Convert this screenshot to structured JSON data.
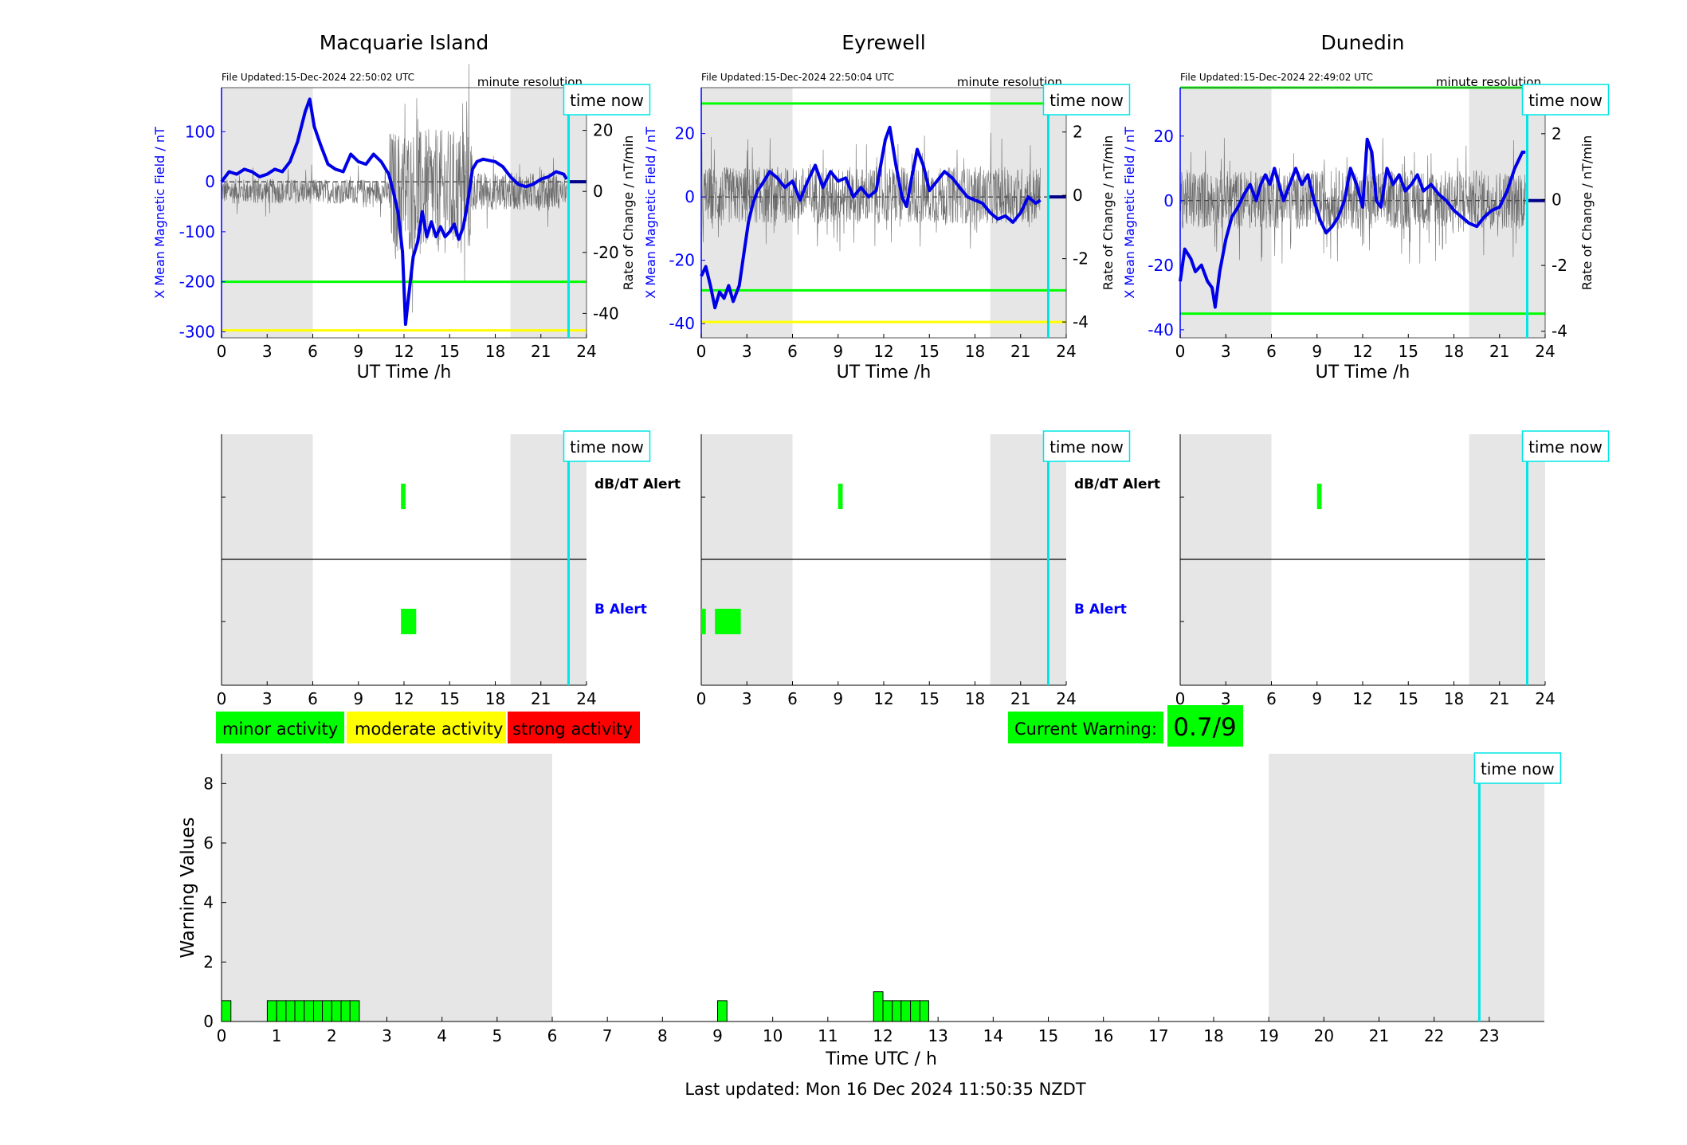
{
  "time_now_label": "time now",
  "time_now_hour": 22.82,
  "station_xlabel": "UT Time /h",
  "station_ylabel_left": "X Mean Magnetic Field / nT",
  "station_ylabel_right": "Rate of Change / nT/min",
  "minute_resolution_label": "minute resolution",
  "stations": [
    {
      "name": "Macquarie Island",
      "file_updated": "File Updated:15-Dec-2024 22:50:02 UTC",
      "ylim_left": [
        -312,
        188
      ],
      "yticks_left": [
        100,
        0,
        -100,
        -200,
        -300
      ],
      "ylim_right": [
        -48,
        34
      ],
      "yticks_right": [
        20,
        0,
        -20,
        -40
      ],
      "green_line": -200,
      "yellow_line": -297,
      "field_points": [
        [
          0,
          0
        ],
        [
          0.5,
          20
        ],
        [
          1,
          15
        ],
        [
          1.5,
          25
        ],
        [
          2,
          20
        ],
        [
          2.5,
          10
        ],
        [
          3,
          15
        ],
        [
          3.5,
          25
        ],
        [
          4,
          20
        ],
        [
          4.5,
          40
        ],
        [
          5,
          80
        ],
        [
          5.5,
          140
        ],
        [
          5.8,
          165
        ],
        [
          6.1,
          110
        ],
        [
          6.5,
          75
        ],
        [
          7,
          35
        ],
        [
          7.5,
          25
        ],
        [
          8,
          20
        ],
        [
          8.5,
          55
        ],
        [
          9,
          40
        ],
        [
          9.5,
          35
        ],
        [
          10,
          55
        ],
        [
          10.5,
          40
        ],
        [
          11,
          15
        ],
        [
          11.3,
          -20
        ],
        [
          11.6,
          -60
        ],
        [
          11.9,
          -140
        ],
        [
          12.1,
          -285
        ],
        [
          12.3,
          -230
        ],
        [
          12.6,
          -150
        ],
        [
          12.9,
          -120
        ],
        [
          13.2,
          -60
        ],
        [
          13.5,
          -110
        ],
        [
          13.8,
          -80
        ],
        [
          14.1,
          -110
        ],
        [
          14.4,
          -90
        ],
        [
          14.7,
          -110
        ],
        [
          15,
          -100
        ],
        [
          15.3,
          -85
        ],
        [
          15.6,
          -115
        ],
        [
          15.9,
          -90
        ],
        [
          16.2,
          -40
        ],
        [
          16.5,
          25
        ],
        [
          16.8,
          40
        ],
        [
          17.2,
          45
        ],
        [
          18,
          40
        ],
        [
          18.5,
          30
        ],
        [
          19,
          10
        ],
        [
          19.5,
          -5
        ],
        [
          20,
          -10
        ],
        [
          20.5,
          -5
        ],
        [
          21,
          5
        ],
        [
          21.5,
          10
        ],
        [
          22,
          20
        ],
        [
          22.5,
          15
        ],
        [
          22.7,
          5
        ]
      ],
      "db_alerts": [
        [
          11.8,
          12.1,
          "minor"
        ]
      ],
      "b_alerts": [
        [
          11.8,
          12.8,
          "minor"
        ]
      ],
      "show_alert_labels": true
    },
    {
      "name": "Eyrewell",
      "file_updated": "File Updated:15-Dec-2024 22:50:04 UTC",
      "ylim_left": [
        -44.5,
        34.5
      ],
      "yticks_left": [
        20,
        0,
        -20,
        -40
      ],
      "ylim_right": [
        -4.5,
        3.4
      ],
      "yticks_right": [
        2,
        0,
        -2,
        -4
      ],
      "green_lines": [
        29.5,
        -29.5
      ],
      "yellow_line": -39.5,
      "field_points": [
        [
          0,
          -25
        ],
        [
          0.3,
          -22
        ],
        [
          0.6,
          -28
        ],
        [
          0.9,
          -35
        ],
        [
          1.2,
          -30
        ],
        [
          1.5,
          -32
        ],
        [
          1.8,
          -28
        ],
        [
          2.1,
          -33
        ],
        [
          2.5,
          -28
        ],
        [
          2.8,
          -18
        ],
        [
          3.1,
          -8
        ],
        [
          3.4,
          -2
        ],
        [
          3.7,
          2
        ],
        [
          4,
          4
        ],
        [
          4.5,
          8
        ],
        [
          5,
          6
        ],
        [
          5.5,
          3
        ],
        [
          6,
          5
        ],
        [
          6.5,
          -1
        ],
        [
          7,
          5
        ],
        [
          7.5,
          10
        ],
        [
          8,
          3
        ],
        [
          8.5,
          8
        ],
        [
          9,
          5
        ],
        [
          9.5,
          6
        ],
        [
          10,
          0
        ],
        [
          10.5,
          3
        ],
        [
          11,
          0
        ],
        [
          11.5,
          2
        ],
        [
          11.8,
          10
        ],
        [
          12.1,
          18
        ],
        [
          12.4,
          22
        ],
        [
          12.8,
          10
        ],
        [
          13.2,
          0
        ],
        [
          13.5,
          -3
        ],
        [
          13.8,
          5
        ],
        [
          14.2,
          15
        ],
        [
          14.6,
          10
        ],
        [
          15,
          2
        ],
        [
          15.5,
          5
        ],
        [
          16,
          8
        ],
        [
          16.5,
          6
        ],
        [
          17,
          3
        ],
        [
          17.5,
          0
        ],
        [
          18,
          -1
        ],
        [
          18.5,
          -2
        ],
        [
          19,
          -5
        ],
        [
          19.5,
          -7
        ],
        [
          20,
          -6
        ],
        [
          20.5,
          -8
        ],
        [
          21,
          -5
        ],
        [
          21.5,
          0
        ],
        [
          22,
          -2
        ],
        [
          22.3,
          -1
        ]
      ],
      "db_alerts": [
        [
          9.0,
          9.3,
          "minor"
        ]
      ],
      "b_alerts": [
        [
          0,
          0.3,
          "minor"
        ],
        [
          0.9,
          2.6,
          "minor"
        ]
      ],
      "show_alert_labels": true
    },
    {
      "name": "Dunedin",
      "file_updated": "File Updated:15-Dec-2024 22:49:02 UTC",
      "ylim_left": [
        -42.5,
        35
      ],
      "yticks_left": [
        20,
        0,
        -20,
        -40
      ],
      "ylim_right": [
        -4.2,
        3.4
      ],
      "yticks_right": [
        2,
        0,
        -2,
        -4
      ],
      "green_lines": [
        35,
        -35
      ],
      "field_points": [
        [
          0,
          -25
        ],
        [
          0.3,
          -15
        ],
        [
          0.7,
          -18
        ],
        [
          1,
          -22
        ],
        [
          1.4,
          -20
        ],
        [
          1.8,
          -25
        ],
        [
          2.1,
          -27
        ],
        [
          2.3,
          -33
        ],
        [
          2.6,
          -22
        ],
        [
          3,
          -12
        ],
        [
          3.4,
          -5
        ],
        [
          3.8,
          -2
        ],
        [
          4.2,
          2
        ],
        [
          4.6,
          5
        ],
        [
          5,
          0
        ],
        [
          5.3,
          5
        ],
        [
          5.6,
          8
        ],
        [
          5.9,
          5
        ],
        [
          6.2,
          10
        ],
        [
          6.5,
          5
        ],
        [
          6.8,
          0
        ],
        [
          7.2,
          5
        ],
        [
          7.6,
          10
        ],
        [
          8,
          5
        ],
        [
          8.4,
          8
        ],
        [
          8.8,
          0
        ],
        [
          9.2,
          -6
        ],
        [
          9.6,
          -10
        ],
        [
          10,
          -8
        ],
        [
          10.4,
          -5
        ],
        [
          10.8,
          0
        ],
        [
          11.2,
          10
        ],
        [
          11.6,
          5
        ],
        [
          12,
          -2
        ],
        [
          12.3,
          19
        ],
        [
          12.6,
          15
        ],
        [
          12.9,
          0
        ],
        [
          13.2,
          -2
        ],
        [
          13.6,
          10
        ],
        [
          14,
          5
        ],
        [
          14.4,
          8
        ],
        [
          14.8,
          3
        ],
        [
          15.2,
          5
        ],
        [
          15.6,
          8
        ],
        [
          16,
          3
        ],
        [
          16.5,
          5
        ],
        [
          17,
          2
        ],
        [
          17.5,
          0
        ],
        [
          18,
          -3
        ],
        [
          18.5,
          -5
        ],
        [
          19,
          -7
        ],
        [
          19.5,
          -8
        ],
        [
          20,
          -5
        ],
        [
          20.5,
          -3
        ],
        [
          21,
          -2
        ],
        [
          21.5,
          3
        ],
        [
          22,
          10
        ],
        [
          22.5,
          15
        ],
        [
          22.7,
          15
        ]
      ],
      "db_alerts": [
        [
          9.0,
          9.3,
          "minor"
        ]
      ],
      "b_alerts": [],
      "show_alert_labels": false
    }
  ],
  "alert_xticks": [
    0,
    3,
    6,
    9,
    12,
    15,
    18,
    21,
    24
  ],
  "db_alert_label": "dB/dT Alert",
  "b_alert_label": "B Alert",
  "legend": {
    "minor": "minor activity",
    "moderate": "moderate activity",
    "strong": "strong activity"
  },
  "colors": {
    "minor": "#00ff00",
    "moderate": "#ffff00",
    "strong": "#ff0000",
    "field_line": "#0000e6",
    "time_now": "#00e5e5",
    "night_shade": "#e6e6e6"
  },
  "current_warning": {
    "label": "Current Warning:",
    "value": "0.7/9"
  },
  "chart_data": {
    "type": "bar",
    "xlabel": "Time UTC / h",
    "ylabel": "Warning Values",
    "xlim": [
      0,
      24
    ],
    "ylim": [
      0,
      9
    ],
    "xticks": [
      0,
      1,
      2,
      3,
      4,
      5,
      6,
      7,
      8,
      9,
      10,
      11,
      12,
      13,
      14,
      15,
      16,
      17,
      18,
      19,
      20,
      21,
      22,
      23
    ],
    "yticks": [
      0,
      2,
      4,
      6,
      8
    ],
    "night_shading": [
      [
        0,
        6
      ],
      [
        19,
        24
      ]
    ],
    "time_now": 22.82,
    "bars": [
      {
        "start": 0.0,
        "end": 0.17,
        "value": 0.7
      },
      {
        "start": 0.83,
        "end": 1.0,
        "value": 0.7
      },
      {
        "start": 1.0,
        "end": 1.17,
        "value": 0.7
      },
      {
        "start": 1.17,
        "end": 1.33,
        "value": 0.7
      },
      {
        "start": 1.33,
        "end": 1.5,
        "value": 0.7
      },
      {
        "start": 1.5,
        "end": 1.67,
        "value": 0.7
      },
      {
        "start": 1.67,
        "end": 1.83,
        "value": 0.7
      },
      {
        "start": 1.83,
        "end": 2.0,
        "value": 0.7
      },
      {
        "start": 2.0,
        "end": 2.17,
        "value": 0.7
      },
      {
        "start": 2.17,
        "end": 2.33,
        "value": 0.7
      },
      {
        "start": 2.33,
        "end": 2.5,
        "value": 0.7
      },
      {
        "start": 9.0,
        "end": 9.17,
        "value": 0.7
      },
      {
        "start": 11.83,
        "end": 12.0,
        "value": 1.0
      },
      {
        "start": 12.0,
        "end": 12.17,
        "value": 0.7
      },
      {
        "start": 12.17,
        "end": 12.33,
        "value": 0.7
      },
      {
        "start": 12.33,
        "end": 12.5,
        "value": 0.7
      },
      {
        "start": 12.5,
        "end": 12.67,
        "value": 0.7
      },
      {
        "start": 12.67,
        "end": 12.83,
        "value": 0.7
      }
    ]
  },
  "last_updated": "Last updated: Mon 16 Dec 2024 11:50:35 NZDT"
}
